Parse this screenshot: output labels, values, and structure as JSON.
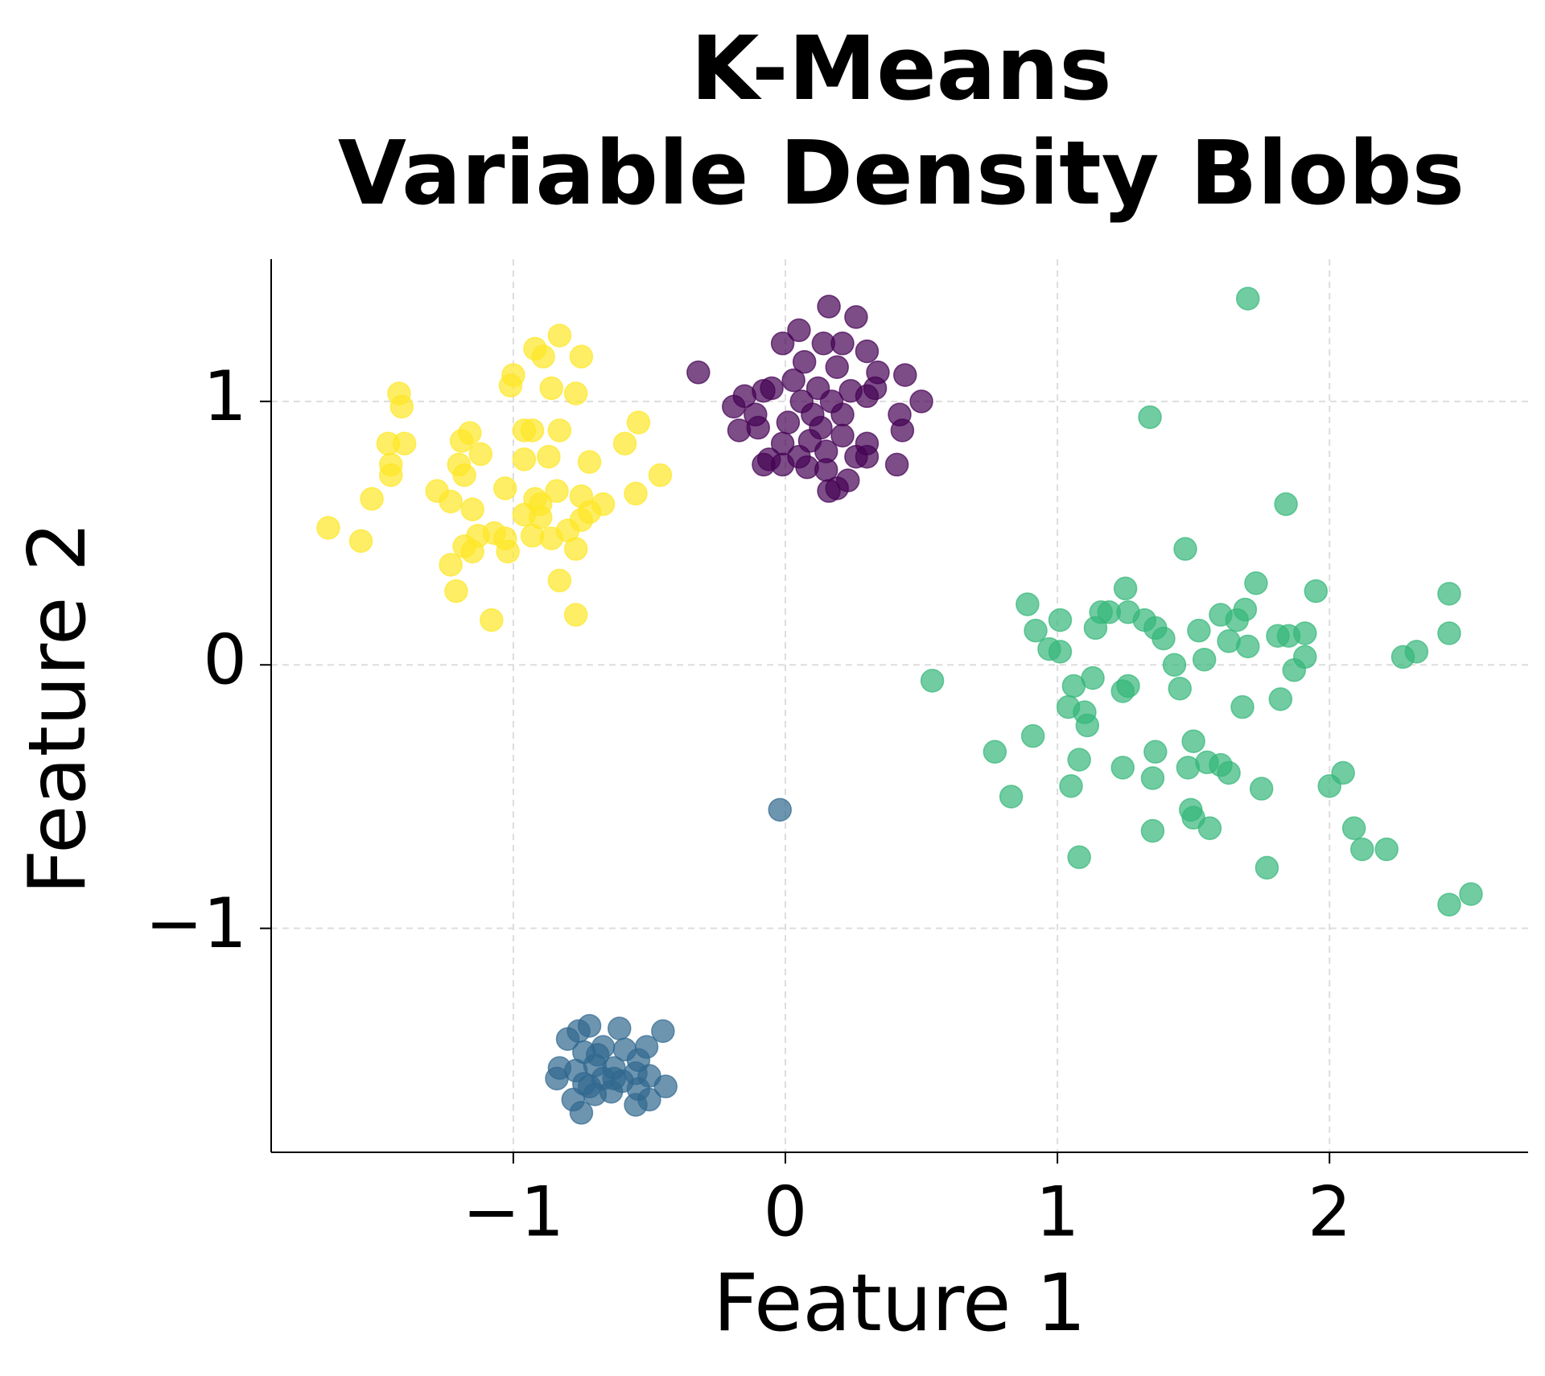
{
  "chart_data": {
    "type": "scatter",
    "title": "K-Means\nVariable Density Blobs",
    "x_label": "Feature 1",
    "y_label": "Feature 2",
    "xlim": [
      -1.89,
      2.73
    ],
    "ylim": [
      -1.85,
      1.54
    ],
    "xticks": [
      {
        "value": -1,
        "label": "−1"
      },
      0,
      1,
      2
    ],
    "yticks": [
      {
        "value": -1,
        "label": "−1"
      },
      0,
      1
    ],
    "grid": true,
    "alpha": 0.7,
    "series": [
      {
        "color": "#440154",
        "x": [
          0.16,
          0.26,
          0.05,
          -0.01,
          0.14,
          0.21,
          0.3,
          -0.32,
          0.07,
          0.19,
          0.34,
          0.44,
          -0.05,
          0.03,
          0.12,
          0.24,
          -0.08,
          -0.15,
          -0.19,
          0.5,
          0.3,
          0.06,
          0.17,
          -0.11,
          0.1,
          0.21,
          0.42,
          0.01,
          0.13,
          0.43,
          -0.17,
          -0.1,
          0.21,
          0.3,
          0.09,
          -0.01,
          0.15,
          0.26,
          -0.06,
          0.05,
          0.3,
          0.41,
          -0.08,
          -0.01,
          0.08,
          0.15,
          0.23,
          0.19,
          0.16,
          0.33
        ],
        "y": [
          1.36,
          1.32,
          1.27,
          1.22,
          1.22,
          1.22,
          1.19,
          1.11,
          1.15,
          1.13,
          1.11,
          1.1,
          1.05,
          1.08,
          1.05,
          1.04,
          1.04,
          1.02,
          0.98,
          1.0,
          1.02,
          1.0,
          1.0,
          0.95,
          0.95,
          0.95,
          0.95,
          0.92,
          0.9,
          0.89,
          0.89,
          0.9,
          0.87,
          0.84,
          0.85,
          0.84,
          0.81,
          0.79,
          0.78,
          0.79,
          0.79,
          0.76,
          0.76,
          0.76,
          0.75,
          0.74,
          0.7,
          0.67,
          0.66,
          1.05
        ]
      },
      {
        "color": "#31688e",
        "x": [
          -0.72,
          -0.61,
          -0.76,
          -0.45,
          -0.8,
          -0.51,
          -0.67,
          -0.59,
          -0.74,
          -0.54,
          -0.83,
          -0.7,
          -0.63,
          -0.77,
          -0.55,
          -0.5,
          -0.84,
          -0.67,
          -0.6,
          -0.44,
          -0.72,
          -0.54,
          -0.64,
          -0.7,
          -0.78,
          -0.5,
          -0.55,
          -0.75,
          -0.63,
          -0.69,
          -0.74,
          -0.02
        ],
        "y": [
          -1.37,
          -1.38,
          -1.39,
          -1.39,
          -1.42,
          -1.45,
          -1.45,
          -1.46,
          -1.47,
          -1.5,
          -1.53,
          -1.52,
          -1.53,
          -1.54,
          -1.55,
          -1.56,
          -1.57,
          -1.57,
          -1.58,
          -1.6,
          -1.6,
          -1.61,
          -1.62,
          -1.63,
          -1.65,
          -1.65,
          -1.67,
          -1.7,
          -1.57,
          -1.48,
          -1.59,
          -0.55
        ]
      },
      {
        "color": "#35b779",
        "x": [
          1.7,
          1.34,
          1.84,
          1.47,
          1.25,
          1.73,
          1.95,
          2.44,
          0.89,
          1.01,
          1.16,
          1.19,
          1.26,
          1.32,
          1.36,
          1.14,
          0.92,
          1.39,
          1.52,
          1.6,
          1.66,
          1.69,
          1.63,
          1.7,
          1.81,
          1.85,
          1.91,
          1.91,
          1.87,
          2.44,
          2.32,
          2.27,
          0.97,
          1.01,
          1.43,
          1.54,
          0.54,
          1.06,
          1.13,
          1.26,
          1.24,
          1.45,
          1.82,
          1.04,
          1.1,
          1.68,
          1.11,
          0.91,
          1.5,
          0.77,
          1.36,
          1.08,
          1.48,
          1.55,
          1.6,
          1.24,
          1.63,
          2.05,
          1.35,
          2.0,
          1.05,
          1.75,
          0.83,
          1.49,
          1.5,
          1.35,
          1.56,
          2.09,
          2.12,
          2.21,
          1.08,
          1.77,
          2.52,
          2.44
        ],
        "y": [
          1.39,
          0.94,
          0.61,
          0.44,
          0.29,
          0.31,
          0.28,
          0.27,
          0.23,
          0.17,
          0.2,
          0.2,
          0.2,
          0.17,
          0.14,
          0.14,
          0.13,
          0.1,
          0.13,
          0.19,
          0.17,
          0.21,
          0.09,
          0.07,
          0.11,
          0.11,
          0.12,
          0.03,
          -0.02,
          0.12,
          0.05,
          0.03,
          0.06,
          0.05,
          0.0,
          0.02,
          -0.06,
          -0.08,
          -0.05,
          -0.08,
          -0.1,
          -0.09,
          -0.13,
          -0.16,
          -0.18,
          -0.16,
          -0.23,
          -0.27,
          -0.29,
          -0.33,
          -0.33,
          -0.36,
          -0.39,
          -0.37,
          -0.38,
          -0.39,
          -0.41,
          -0.41,
          -0.43,
          -0.46,
          -0.46,
          -0.47,
          -0.5,
          -0.55,
          -0.58,
          -0.63,
          -0.62,
          -0.62,
          -0.7,
          -0.7,
          -0.73,
          -0.77,
          -0.87,
          -0.91
        ]
      },
      {
        "color": "#fde725",
        "x": [
          -0.83,
          -0.92,
          -0.89,
          -0.75,
          -1.0,
          -1.01,
          -0.86,
          -0.77,
          -1.42,
          -1.41,
          -0.96,
          -0.93,
          -0.83,
          -1.16,
          -1.46,
          -1.4,
          -1.19,
          -0.59,
          -0.54,
          -0.87,
          -0.96,
          -1.12,
          -1.2,
          -1.45,
          -1.45,
          -0.72,
          -1.18,
          -0.46,
          -1.28,
          -1.03,
          -0.84,
          -0.75,
          -0.55,
          -1.52,
          -0.92,
          -0.9,
          -1.23,
          -0.67,
          -0.72,
          -0.96,
          -0.9,
          -1.15,
          -1.68,
          -1.07,
          -1.03,
          -1.13,
          -0.93,
          -0.8,
          -0.86,
          -1.56,
          -0.77,
          -1.18,
          -1.02,
          -1.15,
          -1.23,
          -0.83,
          -1.21,
          -0.77,
          -1.08,
          -0.75
        ],
        "y": [
          1.25,
          1.2,
          1.17,
          1.17,
          1.1,
          1.06,
          1.05,
          1.03,
          1.03,
          0.98,
          0.89,
          0.89,
          0.89,
          0.88,
          0.84,
          0.84,
          0.85,
          0.84,
          0.92,
          0.79,
          0.78,
          0.8,
          0.76,
          0.76,
          0.72,
          0.77,
          0.72,
          0.72,
          0.66,
          0.67,
          0.66,
          0.64,
          0.65,
          0.63,
          0.63,
          0.61,
          0.62,
          0.61,
          0.58,
          0.57,
          0.56,
          0.59,
          0.52,
          0.5,
          0.48,
          0.49,
          0.49,
          0.51,
          0.48,
          0.47,
          0.44,
          0.45,
          0.43,
          0.43,
          0.38,
          0.32,
          0.28,
          0.19,
          0.17,
          0.55
        ]
      }
    ]
  }
}
